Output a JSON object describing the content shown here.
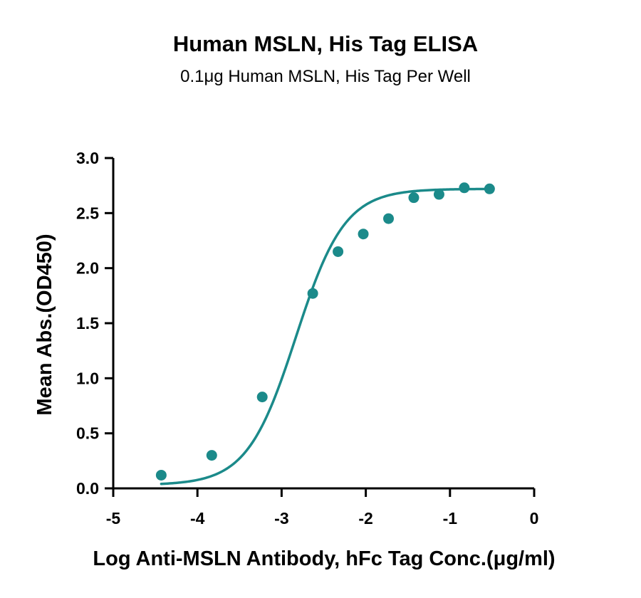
{
  "chart_data": {
    "type": "scatter",
    "title": "Human MSLN, His Tag ELISA",
    "subtitle": "0.1μg Human MSLN, His Tag Per Well",
    "xlabel": "Log Anti-MSLN Antibody, hFc Tag Conc.(μg/ml)",
    "ylabel": "Mean Abs.(OD450)",
    "xlim": [
      -5,
      0
    ],
    "ylim": [
      0,
      3
    ],
    "x_ticks": [
      -5,
      -4,
      -3,
      -2,
      -1,
      0
    ],
    "x_tick_labels": [
      "-5",
      "-4",
      "-3",
      "-2",
      "-1",
      "0"
    ],
    "y_ticks": [
      0,
      0.5,
      1.0,
      1.5,
      2.0,
      2.5,
      3.0
    ],
    "y_tick_labels": [
      "0.0",
      "0.5",
      "1.0",
      "1.5",
      "2.0",
      "2.5",
      "3.0"
    ],
    "grid": false,
    "color": "#1b8a8a",
    "series": [
      {
        "points": [
          {
            "x": -4.43,
            "y": 0.12
          },
          {
            "x": -3.83,
            "y": 0.3
          },
          {
            "x": -3.23,
            "y": 0.83
          },
          {
            "x": -2.63,
            "y": 1.77
          },
          {
            "x": -2.33,
            "y": 2.15
          },
          {
            "x": -2.03,
            "y": 2.31
          },
          {
            "x": -1.73,
            "y": 2.45
          },
          {
            "x": -1.43,
            "y": 2.64
          },
          {
            "x": -1.13,
            "y": 2.67
          },
          {
            "x": -0.83,
            "y": 2.73
          },
          {
            "x": -0.53,
            "y": 2.72
          }
        ]
      }
    ],
    "fit_curve": {
      "model": "4PL",
      "bottom": 0.03,
      "top": 2.72,
      "log_ec50": -2.83,
      "hill_slope": 1.5,
      "x_range": [
        -4.43,
        -0.53
      ]
    }
  }
}
